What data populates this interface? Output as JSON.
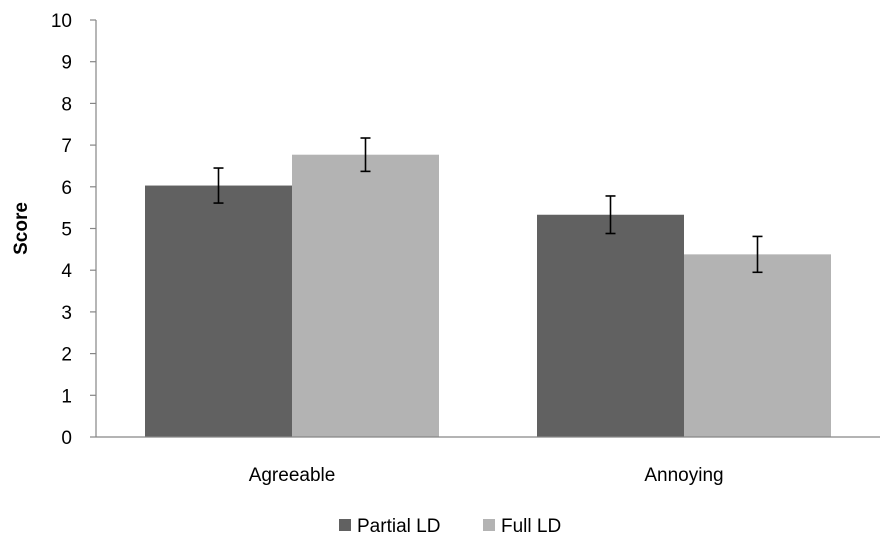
{
  "chart_data": {
    "type": "bar",
    "categories": [
      "Agreeable",
      "Annoying"
    ],
    "series": [
      {
        "name": "Partial LD",
        "values": [
          6.03,
          5.33
        ],
        "error": [
          0.42,
          0.45
        ],
        "color": "#616161"
      },
      {
        "name": "Full LD",
        "values": [
          6.77,
          4.38
        ],
        "error": [
          0.4,
          0.43
        ],
        "color": "#b3b3b3"
      }
    ],
    "title": "",
    "xlabel": "",
    "ylabel": "Score",
    "ylim": [
      0,
      10
    ],
    "yticks": [
      "0",
      "1",
      "2",
      "3",
      "4",
      "5",
      "6",
      "7",
      "8",
      "9",
      "10"
    ],
    "grid": false,
    "legend_position": "bottom",
    "axis_color": "#868686"
  }
}
